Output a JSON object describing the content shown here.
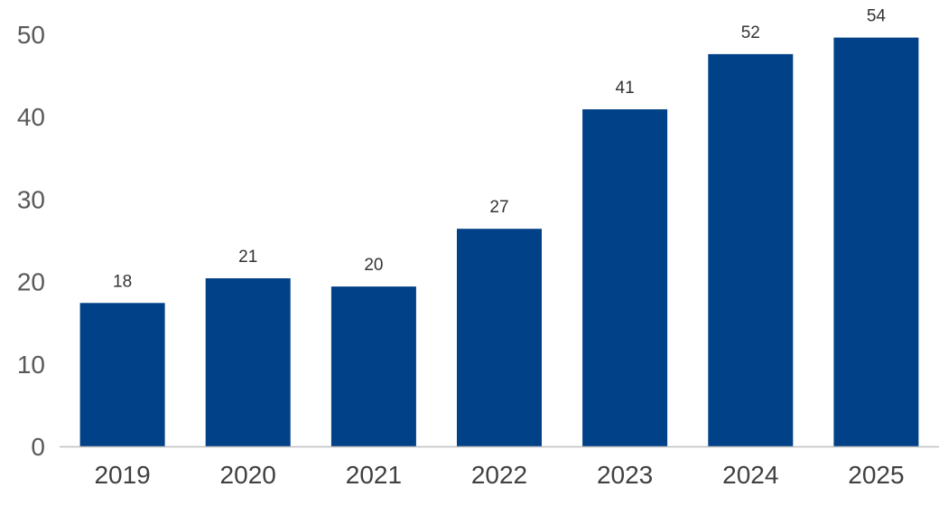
{
  "chart_data": {
    "type": "bar",
    "categories": [
      "2019",
      "2020",
      "2021",
      "2022",
      "2023",
      "2024",
      "2025"
    ],
    "values": [
      18,
      21,
      20,
      27,
      41,
      52,
      54
    ],
    "title": "",
    "xlabel": "",
    "ylabel": "",
    "ylim": [
      0,
      50
    ],
    "yticks": [
      "0",
      "10",
      "20",
      "30",
      "40",
      "50"
    ],
    "grid": false,
    "legend": "none",
    "bar_color": "#004187",
    "axis_color": "#bfbfbf"
  }
}
